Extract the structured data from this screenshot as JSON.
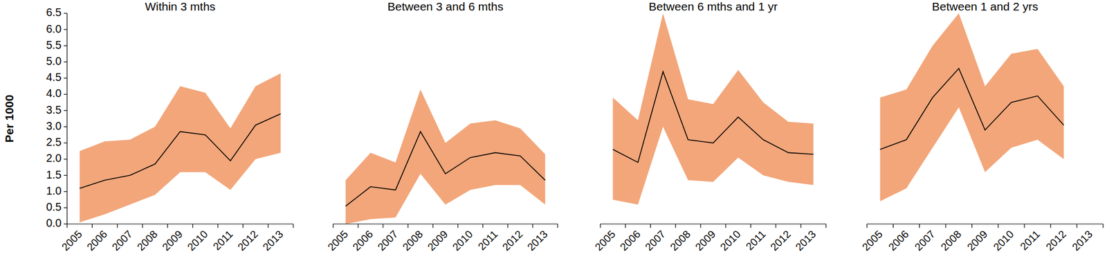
{
  "chart_data": [
    {
      "type": "line",
      "title": "Within 3 mths",
      "ylabel": "Per 1000",
      "categories": [
        "2005",
        "2006",
        "2007",
        "2008",
        "2009",
        "2010",
        "2011",
        "2012",
        "2013"
      ],
      "series": [
        {
          "color": "#000000",
          "values": [
            1.1,
            1.35,
            1.5,
            1.85,
            2.85,
            2.75,
            1.95,
            3.05,
            3.4
          ],
          "lower": [
            0.05,
            0.3,
            0.6,
            0.9,
            1.6,
            1.6,
            1.05,
            2.0,
            2.2
          ],
          "upper": [
            2.25,
            2.55,
            2.6,
            3.0,
            4.25,
            4.05,
            2.95,
            4.25,
            4.65
          ]
        }
      ],
      "ylim": [
        0,
        6.5
      ],
      "yticks": [
        {
          "value": 0,
          "label": "0.0"
        },
        {
          "value": 0.5,
          "label": "0.5"
        },
        {
          "value": 1,
          "label": "1.0"
        },
        {
          "value": 1.5,
          "label": "1.5"
        },
        {
          "value": 2,
          "label": "2.0"
        },
        {
          "value": 2.5,
          "label": "2.5"
        },
        {
          "value": 3,
          "label": "3.0"
        },
        {
          "value": 3.5,
          "label": "3.5"
        },
        {
          "value": 4,
          "label": "4.0"
        },
        {
          "value": 4.5,
          "label": "4.5"
        },
        {
          "value": 5,
          "label": "5.0"
        },
        {
          "value": 5.5,
          "label": "5.5"
        },
        {
          "value": 6,
          "label": "6.0"
        },
        {
          "value": 6.5,
          "label": "6.5"
        }
      ],
      "grid": false
    },
    {
      "type": "line",
      "title": "Between 3 and 6 mths",
      "categories": [
        "2005",
        "2006",
        "2007",
        "2008",
        "2009",
        "2010",
        "2011",
        "2012",
        "2013"
      ],
      "series": [
        {
          "color": "#000000",
          "values": [
            0.55,
            1.15,
            1.05,
            2.85,
            1.55,
            2.05,
            2.2,
            2.1,
            1.35
          ],
          "lower": [
            0.0,
            0.15,
            0.2,
            1.55,
            0.6,
            1.05,
            1.2,
            1.2,
            0.6
          ],
          "upper": [
            1.35,
            2.2,
            1.9,
            4.15,
            2.5,
            3.1,
            3.2,
            2.95,
            2.15
          ]
        }
      ],
      "ylim": [
        0,
        6.5
      ],
      "grid": false,
      "tick_labels": "x"
    },
    {
      "type": "line",
      "title": "Between 6 mths and 1 yr",
      "categories": [
        "2005",
        "2006",
        "2007",
        "2008",
        "2009",
        "2010",
        "2011",
        "2012",
        "2013"
      ],
      "series": [
        {
          "color": "#000000",
          "values": [
            2.3,
            1.9,
            4.7,
            2.6,
            2.5,
            3.3,
            2.6,
            2.2,
            2.15
          ],
          "lower": [
            0.75,
            0.6,
            3.0,
            1.35,
            1.3,
            2.05,
            1.5,
            1.3,
            1.2
          ],
          "upper": [
            3.9,
            3.2,
            6.5,
            3.85,
            3.7,
            4.75,
            3.75,
            3.15,
            3.1
          ]
        }
      ],
      "ylim": [
        0,
        6.5
      ],
      "grid": false,
      "tick_labels": "x"
    },
    {
      "type": "line",
      "title": "Between 1 and 2 yrs",
      "categories": [
        "2005",
        "2006",
        "2007",
        "2008",
        "2009",
        "2010",
        "2011",
        "2012",
        "2013"
      ],
      "series": [
        {
          "color": "#000000",
          "values": [
            2.3,
            2.6,
            3.9,
            4.8,
            2.9,
            3.75,
            3.95,
            3.05,
            null
          ],
          "lower": [
            0.7,
            1.1,
            2.35,
            3.6,
            1.6,
            2.35,
            2.6,
            2.0,
            null
          ],
          "upper": [
            3.9,
            4.15,
            5.5,
            6.5,
            4.25,
            5.25,
            5.4,
            4.25,
            null
          ]
        }
      ],
      "ylim": [
        0,
        6.5
      ],
      "grid": false,
      "tick_labels": "x"
    }
  ]
}
